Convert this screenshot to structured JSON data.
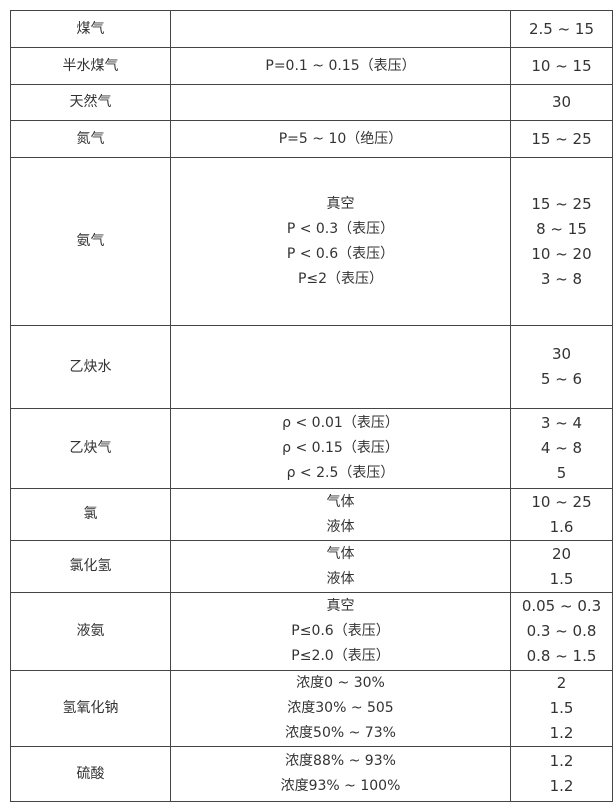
{
  "table": {
    "rows": [
      {
        "name": "煤气",
        "conditions": [],
        "values": [
          "2.5 ~ 15"
        ]
      },
      {
        "name": "半水煤气",
        "conditions": [
          "P=0.1 ~ 0.15（表压）"
        ],
        "values": [
          "10 ~ 15"
        ]
      },
      {
        "name": "天然气",
        "conditions": [],
        "values": [
          "30"
        ]
      },
      {
        "name": "氮气",
        "conditions": [
          "P=5 ~ 10（绝压）"
        ],
        "values": [
          "15 ~ 25"
        ]
      },
      {
        "name": "氨气",
        "conditions": [
          "真空",
          "P < 0.3（表压）",
          "P < 0.6（表压）",
          "P≤2（表压）"
        ],
        "values": [
          "15 ~ 25",
          "8 ~ 15",
          "10 ~ 20",
          "3 ~ 8"
        ]
      },
      {
        "name": "乙炔水",
        "conditions": [],
        "values": [
          "30",
          "5 ~ 6"
        ]
      },
      {
        "name": "乙炔气",
        "conditions": [
          "ρ < 0.01（表压）",
          "ρ < 0.15（表压）",
          "ρ < 2.5（表压）"
        ],
        "values": [
          "3 ~ 4",
          "4 ~ 8",
          "5"
        ]
      },
      {
        "name": "氯",
        "conditions": [
          "气体",
          "液体"
        ],
        "values": [
          "10 ~ 25",
          "1.6"
        ]
      },
      {
        "name": "氯化氢",
        "conditions": [
          "气体",
          "液体"
        ],
        "values": [
          "20",
          "1.5"
        ]
      },
      {
        "name": "液氨",
        "conditions": [
          "真空",
          "P≤0.6（表压）",
          "P≤2.0（表压）"
        ],
        "values": [
          "0.05 ~ 0.3",
          "0.3 ~ 0.8",
          "0.8 ~ 1.5"
        ]
      },
      {
        "name": "氢氧化钠",
        "conditions": [
          "浓度0 ~ 30%",
          "浓度30% ~ 505",
          "浓度50% ~ 73%"
        ],
        "values": [
          "2",
          "1.5",
          "1.2"
        ]
      },
      {
        "name": "硫酸",
        "conditions": [
          "浓度88% ~ 93%",
          "浓度93% ~ 100%"
        ],
        "values": [
          "1.2",
          "1.2"
        ]
      }
    ]
  }
}
